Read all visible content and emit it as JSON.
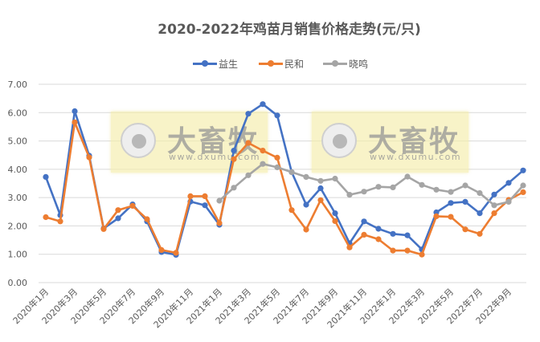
{
  "chart_data": {
    "type": "line",
    "title": "2020-2022年鸡苗月销售价格走势(元/只)",
    "xlabel": "",
    "ylabel": "",
    "ylim": [
      0,
      7
    ],
    "yticks": [
      "0.00",
      "1.00",
      "2.00",
      "3.00",
      "4.00",
      "5.00",
      "6.00",
      "7.00"
    ],
    "grid": true,
    "legend_position": "top",
    "x": [
      "2020年1月",
      "2020年2月",
      "2020年3月",
      "2020年4月",
      "2020年5月",
      "2020年6月",
      "2020年7月",
      "2020年8月",
      "2020年9月",
      "2020年10月",
      "2020年11月",
      "2020年12月",
      "2021年1月",
      "2021年2月",
      "2021年3月",
      "2021年4月",
      "2021年5月",
      "2021年6月",
      "2021年7月",
      "2021年8月",
      "2021年9月",
      "2021年10月",
      "2021年11月",
      "2021年12月",
      "2022年1月",
      "2022年2月",
      "2022年3月",
      "2022年4月",
      "2022年5月",
      "2022年6月",
      "2022年7月",
      "2022年8月",
      "2022年9月",
      "2022年10月"
    ],
    "xtick_labels": [
      "2020年1月",
      "2020年3月",
      "2020年5月",
      "2020年7月",
      "2020年9月",
      "2020年11月",
      "2021年1月",
      "2021年3月",
      "2021年5月",
      "2021年7月",
      "2021年9月",
      "2021年11月",
      "2022年1月",
      "2022年3月",
      "2022年5月",
      "2022年7月",
      "2022年9月"
    ],
    "series": [
      {
        "name": "益生",
        "color": "#4472c4",
        "values": [
          3.73,
          2.38,
          6.05,
          4.48,
          1.91,
          2.27,
          2.76,
          2.16,
          1.08,
          0.98,
          2.86,
          2.73,
          2.04,
          4.66,
          5.96,
          6.3,
          5.9,
          3.9,
          2.75,
          3.33,
          2.45,
          1.39,
          2.16,
          1.9,
          1.72,
          1.67,
          1.17,
          2.48,
          2.81,
          2.85,
          2.45,
          3.11,
          3.52,
          3.96
        ]
      },
      {
        "name": "民和",
        "color": "#ed7d31",
        "values": [
          2.31,
          2.16,
          5.66,
          4.42,
          1.89,
          2.56,
          2.71,
          2.24,
          1.15,
          1.05,
          3.05,
          3.05,
          2.1,
          4.36,
          4.93,
          4.66,
          4.41,
          2.56,
          1.87,
          2.91,
          2.17,
          1.24,
          1.69,
          1.53,
          1.13,
          1.13,
          0.99,
          2.34,
          2.32,
          1.88,
          1.72,
          2.45,
          2.92,
          3.19
        ]
      },
      {
        "name": "晓鸣",
        "color": "#a5a5a5",
        "values": [
          null,
          null,
          null,
          null,
          null,
          null,
          null,
          null,
          null,
          null,
          null,
          null,
          2.89,
          3.35,
          3.79,
          4.19,
          4.07,
          3.9,
          3.73,
          3.59,
          3.67,
          3.1,
          3.21,
          3.38,
          3.36,
          3.74,
          3.45,
          3.28,
          3.2,
          3.43,
          3.16,
          2.73,
          2.85,
          3.43
        ]
      }
    ]
  },
  "watermarks": [
    {
      "text": "大畜牧",
      "url": "www.dxumu.com"
    },
    {
      "text": "大畜牧",
      "url": "www.dxumu.com"
    }
  ],
  "colors": {
    "grid": "#d9d9d9",
    "text": "#595959",
    "watermark_bg": "#f4ecaa"
  }
}
